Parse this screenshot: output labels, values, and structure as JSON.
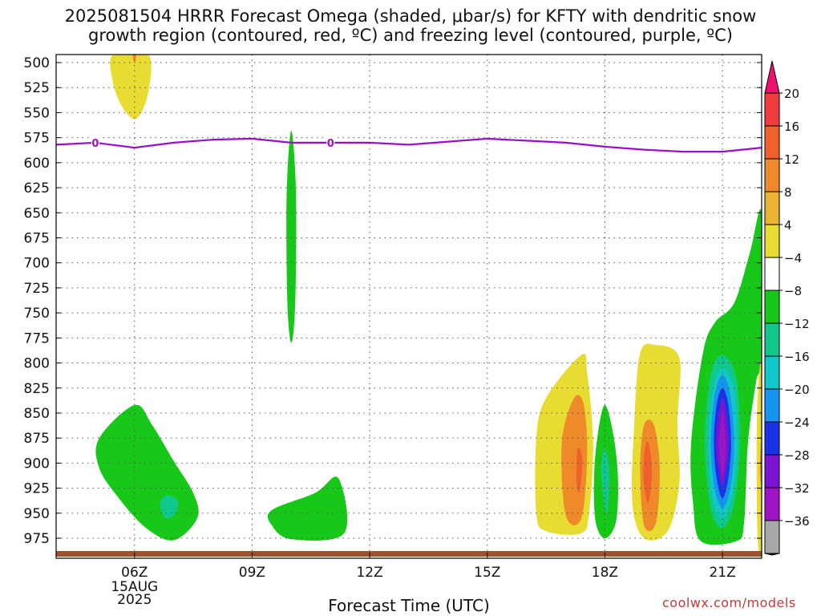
{
  "title_line1": "2025081504 HRRR Forecast Omega (shaded, μbar/s) for KFTY with dendritic snow",
  "title_line2": "growth region (contoured, red, ºC) and freezing level (contoured, purple, ºC)",
  "credit": "coolwx.com/models",
  "chart_data": {
    "type": "heatmap",
    "title": "2025081504 HRRR Forecast Omega (shaded, μbar/s) for KFTY with dendritic snow growth region (contoured, red, ºC) and freezing level (contoured, purple, ºC)",
    "xlabel": "Forecast Time (UTC)",
    "ylabel": "",
    "x_ticks": [
      {
        "label": "06Z",
        "hour": 6,
        "sub": [
          "15AUG",
          "2025"
        ]
      },
      {
        "label": "09Z",
        "hour": 9
      },
      {
        "label": "12Z",
        "hour": 12
      },
      {
        "label": "15Z",
        "hour": 15
      },
      {
        "label": "18Z",
        "hour": 18
      },
      {
        "label": "21Z",
        "hour": 21
      }
    ],
    "xlim": [
      4,
      22.0
    ],
    "y_ticks": [
      500,
      525,
      550,
      575,
      600,
      625,
      650,
      675,
      700,
      725,
      750,
      775,
      800,
      825,
      850,
      875,
      900,
      925,
      950,
      975
    ],
    "ylim": [
      492,
      995
    ],
    "grid": true,
    "colorbar": {
      "labels": [
        "20",
        "16",
        "12",
        "8",
        "4",
        "−4",
        "−8",
        "−12",
        "−16",
        "−20",
        "−24",
        "−28",
        "−32",
        "−36"
      ],
      "colors": [
        "#f0106e",
        "#f03c3c",
        "#f0602a",
        "#ee8a2a",
        "#e8b432",
        "#e8dc32",
        "#ffffff",
        "#18c818",
        "#10c88c",
        "#10c8c8",
        "#1496f0",
        "#1a32e6",
        "#7a14d2",
        "#a014c8",
        "#a8a8a8",
        "#000000"
      ]
    },
    "freezing_level": {
      "color": "#9a10c8",
      "label": "0",
      "label_hours": [
        5,
        11
      ],
      "points": [
        [
          4.0,
          582
        ],
        [
          5.0,
          580
        ],
        [
          6.0,
          585
        ],
        [
          7.0,
          580
        ],
        [
          8.0,
          577
        ],
        [
          9.0,
          576
        ],
        [
          10.0,
          580
        ],
        [
          11.0,
          580
        ],
        [
          12.0,
          580
        ],
        [
          13.0,
          582
        ],
        [
          14.0,
          579
        ],
        [
          15.0,
          576
        ],
        [
          16.0,
          578
        ],
        [
          17.0,
          580
        ],
        [
          18.0,
          584
        ],
        [
          19.0,
          587
        ],
        [
          20.0,
          589
        ],
        [
          21.0,
          589
        ],
        [
          22.0,
          585
        ]
      ]
    },
    "omega_regions": [
      {
        "value": 6,
        "points": [
          [
            5.45,
            492
          ],
          [
            6.35,
            492
          ],
          [
            6.35,
            530
          ],
          [
            6.05,
            556
          ],
          [
            5.7,
            545
          ],
          [
            5.45,
            520
          ]
        ]
      },
      {
        "value": 10,
        "points": [
          [
            5.95,
            492
          ],
          [
            6.05,
            492
          ],
          [
            6.0,
            500
          ]
        ]
      },
      {
        "value": -6,
        "points": [
          [
            9.88,
            632
          ],
          [
            10.0,
            568
          ],
          [
            10.12,
            632
          ],
          [
            10.1,
            740
          ],
          [
            10.0,
            780
          ],
          [
            9.9,
            740
          ]
        ]
      },
      {
        "value": -6,
        "points": [
          [
            5.1,
            875
          ],
          [
            6.0,
            842
          ],
          [
            6.45,
            862
          ],
          [
            7.0,
            898
          ],
          [
            7.5,
            930
          ],
          [
            7.6,
            955
          ],
          [
            7.0,
            977
          ],
          [
            6.3,
            965
          ],
          [
            5.6,
            935
          ],
          [
            5.1,
            905
          ]
        ]
      },
      {
        "value": -10,
        "points": [
          [
            6.65,
            940
          ],
          [
            6.85,
            932
          ],
          [
            7.1,
            938
          ],
          [
            7.05,
            950
          ],
          [
            6.8,
            955
          ]
        ]
      },
      {
        "value": -6,
        "points": [
          [
            9.5,
            947
          ],
          [
            10.6,
            930
          ],
          [
            11.2,
            915
          ],
          [
            11.35,
            970
          ],
          [
            10.0,
            976
          ],
          [
            9.5,
            962
          ]
        ]
      },
      {
        "value": 6,
        "points": [
          [
            16.5,
            835
          ],
          [
            17.4,
            792
          ],
          [
            17.55,
            810
          ],
          [
            17.7,
            880
          ],
          [
            17.6,
            948
          ],
          [
            17.4,
            970
          ],
          [
            16.5,
            968
          ],
          [
            16.25,
            950
          ],
          [
            16.25,
            875
          ]
        ]
      },
      {
        "value": 10,
        "points": [
          [
            17.2,
            836
          ],
          [
            17.45,
            840
          ],
          [
            17.55,
            890
          ],
          [
            17.4,
            955
          ],
          [
            17.0,
            952
          ],
          [
            16.9,
            880
          ]
        ]
      },
      {
        "value": 14,
        "points": [
          [
            17.3,
            886
          ],
          [
            17.42,
            895
          ],
          [
            17.36,
            928
          ],
          [
            17.28,
            920
          ]
        ]
      },
      {
        "value": -6,
        "points": [
          [
            18.0,
            842
          ],
          [
            18.3,
            895
          ],
          [
            18.3,
            955
          ],
          [
            18.0,
            975
          ],
          [
            17.75,
            955
          ],
          [
            17.75,
            895
          ]
        ]
      },
      {
        "value": -10,
        "points": [
          [
            18.0,
            885
          ],
          [
            18.12,
            910
          ],
          [
            18.05,
            950
          ],
          [
            17.9,
            910
          ]
        ]
      },
      {
        "value": 6,
        "points": [
          [
            18.9,
            790
          ],
          [
            19.3,
            782
          ],
          [
            19.9,
            795
          ],
          [
            19.85,
            860
          ],
          [
            19.9,
            920
          ],
          [
            19.6,
            968
          ],
          [
            19.0,
            975
          ],
          [
            18.7,
            940
          ],
          [
            18.75,
            860
          ]
        ]
      },
      {
        "value": 10,
        "points": [
          [
            19.0,
            862
          ],
          [
            19.25,
            862
          ],
          [
            19.4,
            905
          ],
          [
            19.3,
            960
          ],
          [
            19.0,
            962
          ],
          [
            18.9,
            905
          ]
        ]
      },
      {
        "value": 14,
        "points": [
          [
            19.05,
            880
          ],
          [
            19.15,
            886
          ],
          [
            19.2,
            912
          ],
          [
            19.1,
            940
          ],
          [
            18.98,
            912
          ]
        ]
      },
      {
        "value": -6,
        "points": [
          [
            22.0,
            650
          ],
          [
            22.0,
            790
          ],
          [
            21.85,
            820
          ],
          [
            21.65,
            880
          ],
          [
            21.55,
            960
          ],
          [
            21.35,
            978
          ],
          [
            20.45,
            978
          ],
          [
            20.25,
            940
          ],
          [
            20.2,
            880
          ],
          [
            20.5,
            790
          ],
          [
            20.8,
            760
          ],
          [
            21.3,
            740
          ],
          [
            21.7,
            690
          ]
        ]
      },
      {
        "value": -10,
        "points": [
          [
            21.0,
            792
          ],
          [
            21.35,
            815
          ],
          [
            21.45,
            880
          ],
          [
            21.3,
            940
          ],
          [
            21.0,
            965
          ],
          [
            20.7,
            945
          ],
          [
            20.55,
            880
          ],
          [
            20.7,
            812
          ]
        ]
      },
      {
        "value": -14,
        "points": [
          [
            21.0,
            805
          ],
          [
            21.28,
            825
          ],
          [
            21.37,
            880
          ],
          [
            21.25,
            930
          ],
          [
            21.0,
            955
          ],
          [
            20.75,
            935
          ],
          [
            20.65,
            880
          ],
          [
            20.77,
            825
          ]
        ]
      },
      {
        "value": -18,
        "points": [
          [
            21.0,
            812
          ],
          [
            21.2,
            832
          ],
          [
            21.3,
            880
          ],
          [
            21.2,
            925
          ],
          [
            21.0,
            945
          ],
          [
            20.8,
            925
          ],
          [
            20.7,
            880
          ],
          [
            20.8,
            832
          ]
        ]
      },
      {
        "value": -22,
        "points": [
          [
            21.0,
            825
          ],
          [
            21.15,
            842
          ],
          [
            21.22,
            880
          ],
          [
            21.15,
            915
          ],
          [
            21.0,
            935
          ],
          [
            20.85,
            915
          ],
          [
            20.78,
            880
          ],
          [
            20.85,
            842
          ]
        ]
      },
      {
        "value": -26,
        "points": [
          [
            21.0,
            835
          ],
          [
            21.1,
            852
          ],
          [
            21.16,
            880
          ],
          [
            21.1,
            905
          ],
          [
            21.0,
            922
          ],
          [
            20.9,
            905
          ],
          [
            20.84,
            880
          ],
          [
            20.9,
            852
          ]
        ]
      },
      {
        "value": -30,
        "points": [
          [
            21.0,
            850
          ],
          [
            21.06,
            865
          ],
          [
            21.08,
            885
          ],
          [
            21.04,
            905
          ],
          [
            21.0,
            912
          ],
          [
            20.96,
            905
          ],
          [
            20.92,
            885
          ],
          [
            20.94,
            865
          ]
        ]
      },
      {
        "value": 6,
        "points": [
          [
            22.0,
            808
          ],
          [
            22.0,
            978
          ],
          [
            21.9,
            978
          ],
          [
            21.87,
            900
          ],
          [
            21.9,
            830
          ]
        ]
      },
      {
        "value": 10,
        "points": [
          [
            22.0,
            870
          ],
          [
            22.0,
            920
          ],
          [
            21.95,
            905
          ]
        ]
      }
    ]
  }
}
